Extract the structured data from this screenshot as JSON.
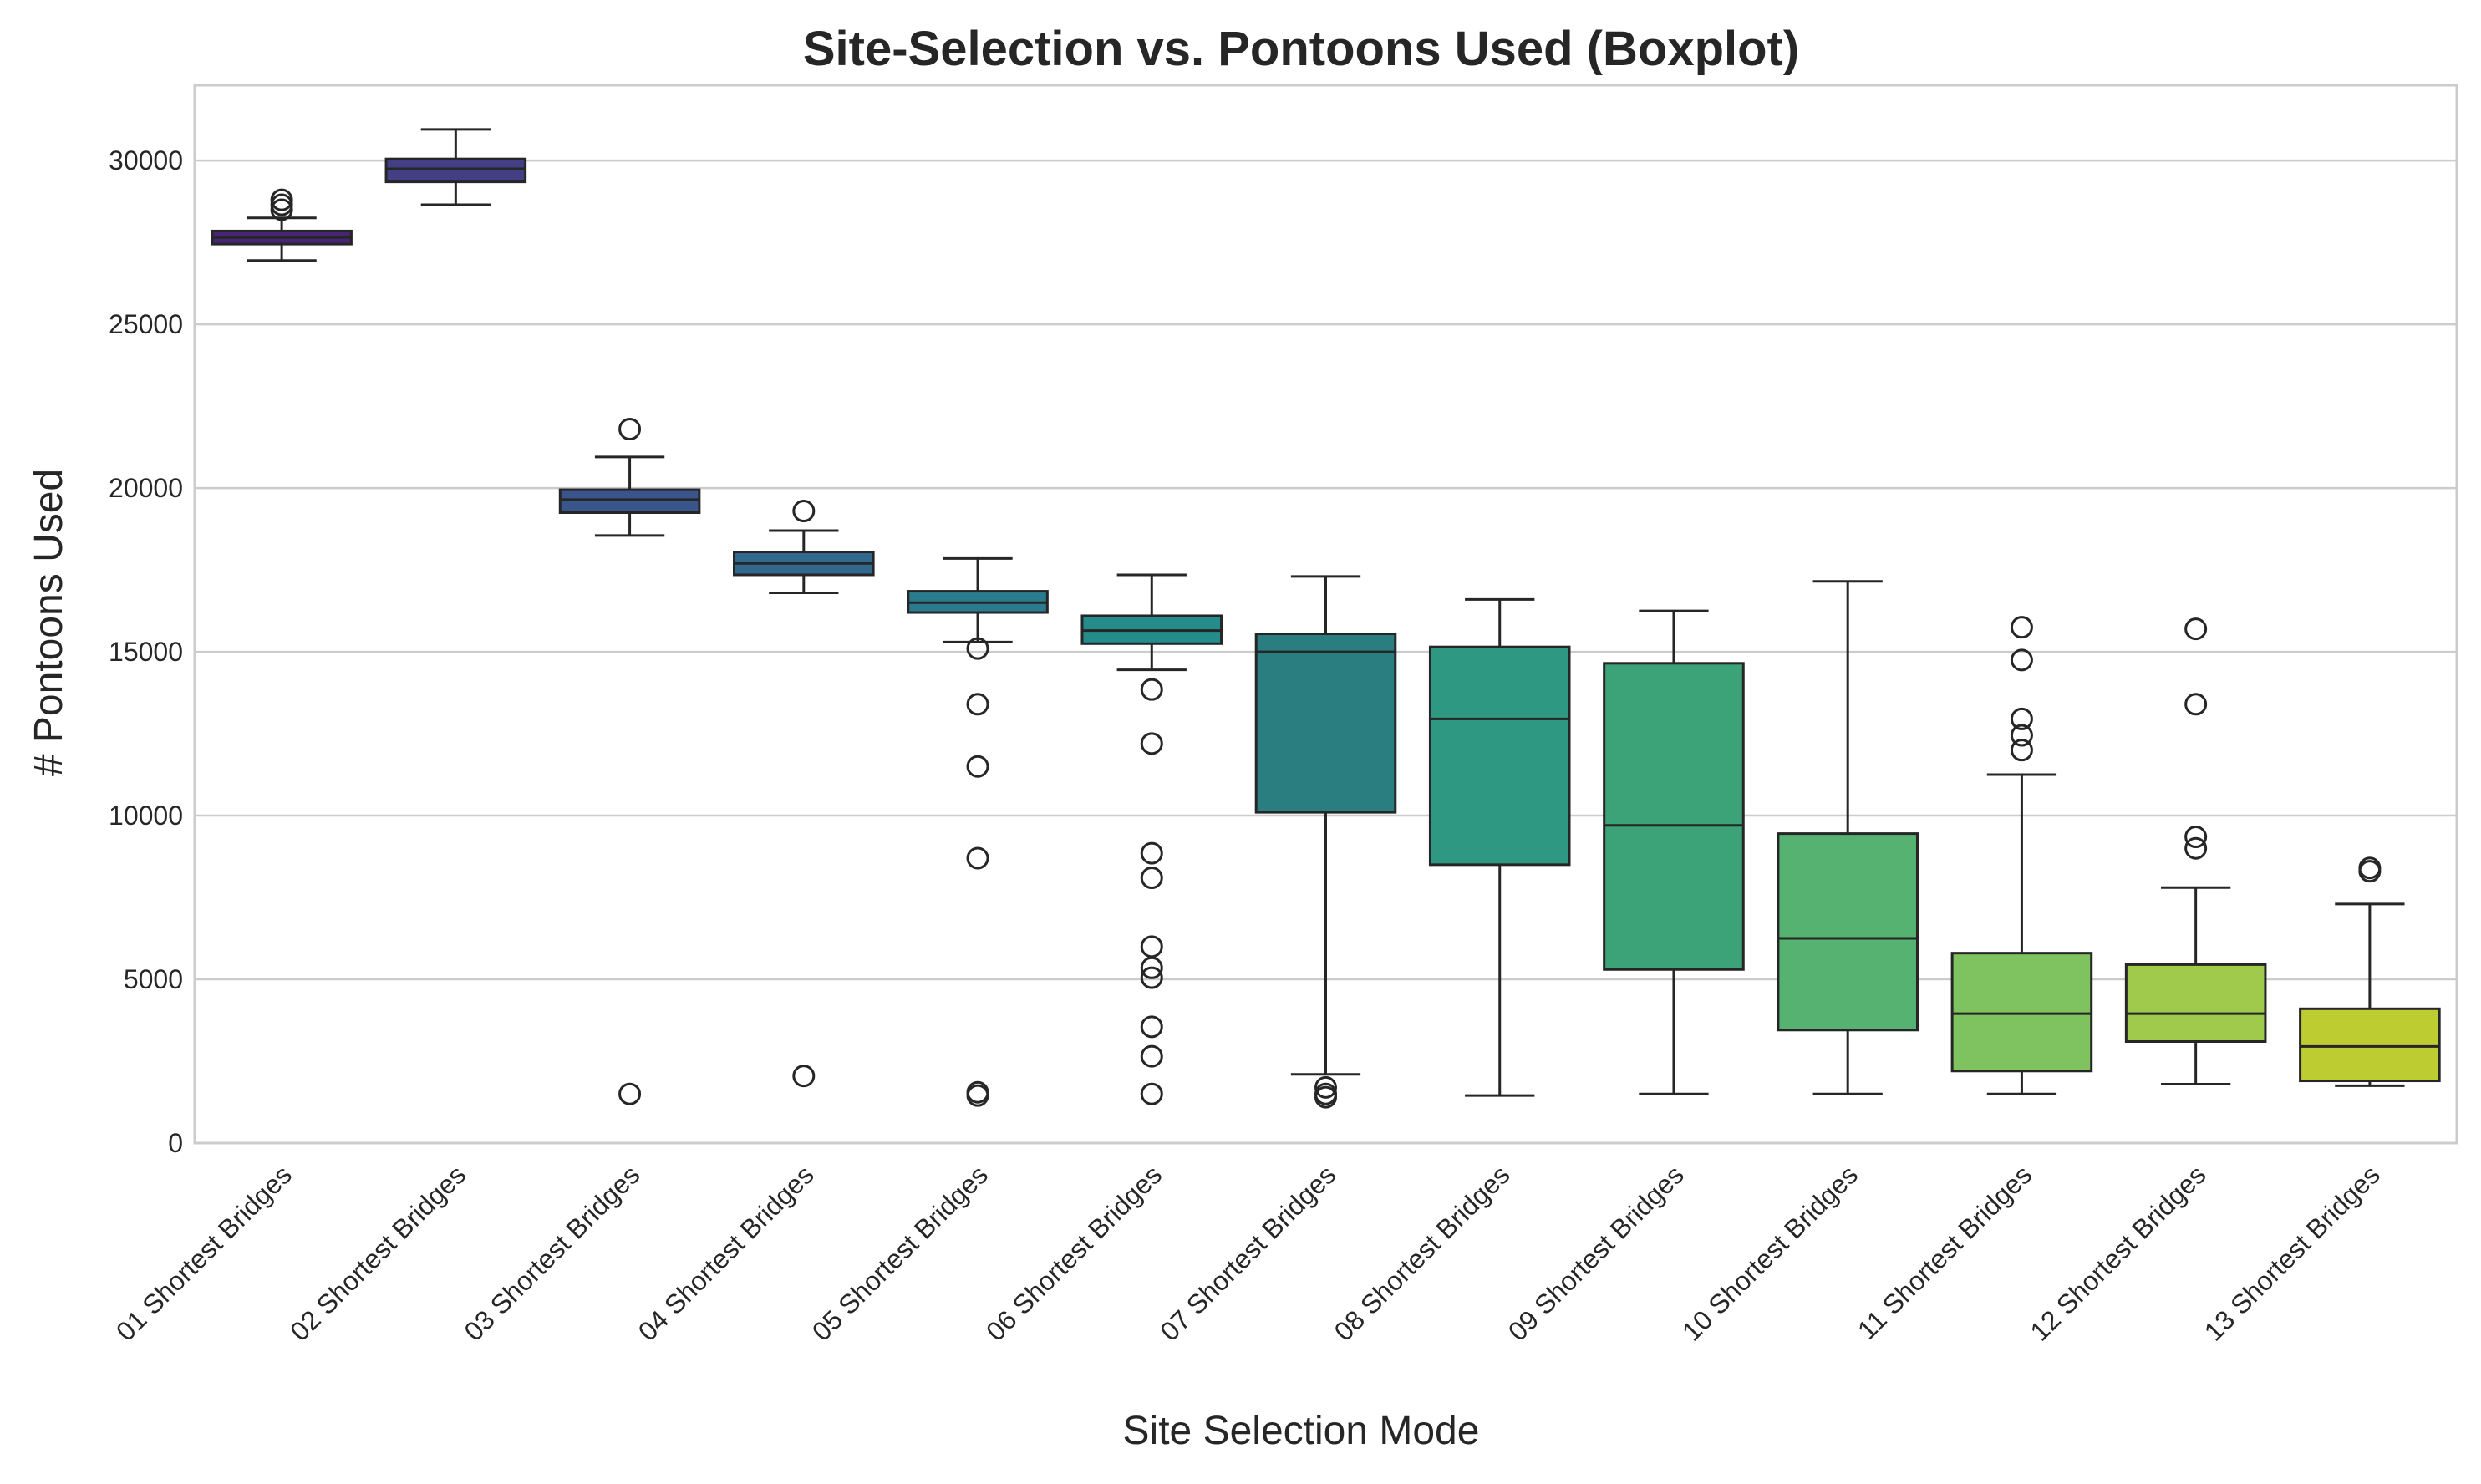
{
  "chart_data": {
    "type": "boxplot",
    "title": "Site-Selection vs. Pontoons Used (Boxplot)",
    "xlabel": "Site Selection Mode",
    "ylabel": "# Pontoons Used",
    "ylim": [
      0,
      32300
    ],
    "yticks": [
      0,
      5000,
      10000,
      15000,
      20000,
      25000,
      30000
    ],
    "grid": "horizontal",
    "categories": [
      "01 Shortest Bridges",
      "02 Shortest Bridges",
      "03 Shortest Bridges",
      "04 Shortest Bridges",
      "05 Shortest Bridges",
      "06 Shortest Bridges",
      "07 Shortest Bridges",
      "08 Shortest Bridges",
      "09 Shortest Bridges",
      "10 Shortest Bridges",
      "11 Shortest Bridges",
      "12 Shortest Bridges",
      "13 Shortest Bridges"
    ],
    "boxes": [
      {
        "whislo": 26950,
        "q1": 27450,
        "med": 27650,
        "q3": 27850,
        "whishi": 28250,
        "fliers": [
          28500,
          28650,
          28800
        ],
        "color": "#482475"
      },
      {
        "whislo": 28650,
        "q1": 29350,
        "med": 29750,
        "q3": 30050,
        "whishi": 30950,
        "fliers": [],
        "color": "#423f85"
      },
      {
        "whislo": 18550,
        "q1": 19250,
        "med": 19650,
        "q3": 19950,
        "whishi": 20950,
        "fliers": [
          21800,
          1500
        ],
        "color": "#3a548c"
      },
      {
        "whislo": 16800,
        "q1": 17350,
        "med": 17700,
        "q3": 18050,
        "whishi": 18700,
        "fliers": [
          19300,
          2050
        ],
        "color": "#31688e"
      },
      {
        "whislo": 15300,
        "q1": 16200,
        "med": 16500,
        "q3": 16850,
        "whishi": 17850,
        "fliers": [
          15100,
          13400,
          11500,
          8700,
          1550,
          1450
        ],
        "color": "#2b7b8e"
      },
      {
        "whislo": 14450,
        "q1": 15250,
        "med": 15650,
        "q3": 16100,
        "whishi": 17350,
        "fliers": [
          13850,
          12200,
          8850,
          8100,
          6000,
          5350,
          5050,
          3550,
          2650,
          1500
        ],
        "color": "#248d8c"
      },
      {
        "whislo": 2100,
        "q1": 10100,
        "med": 15000,
        "q3": 15550,
        "whishi": 17300,
        "fliers": [
          1700,
          1500,
          1400
        ],
        "color": "#2a7e7f"
      },
      {
        "whislo": 1450,
        "q1": 8500,
        "med": 12950,
        "q3": 15150,
        "whishi": 16600,
        "fliers": [],
        "color": "#2e9882"
      },
      {
        "whislo": 1500,
        "q1": 5300,
        "med": 9700,
        "q3": 14650,
        "whishi": 16250,
        "fliers": [],
        "color": "#3ba377"
      },
      {
        "whislo": 1500,
        "q1": 3450,
        "med": 6250,
        "q3": 9450,
        "whishi": 17150,
        "fliers": [],
        "color": "#56b270"
      },
      {
        "whislo": 1500,
        "q1": 2200,
        "med": 3950,
        "q3": 5800,
        "whishi": 11250,
        "fliers": [
          15750,
          14750,
          12950,
          12450,
          12000
        ],
        "color": "#7ec35f"
      },
      {
        "whislo": 1800,
        "q1": 3100,
        "med": 3950,
        "q3": 5450,
        "whishi": 7800,
        "fliers": [
          15700,
          13400,
          9350,
          9000
        ],
        "color": "#9fca4b"
      },
      {
        "whislo": 1750,
        "q1": 1900,
        "med": 2950,
        "q3": 4100,
        "whishi": 7300,
        "fliers": [
          8300,
          8400
        ],
        "color": "#bdcc31"
      }
    ]
  }
}
